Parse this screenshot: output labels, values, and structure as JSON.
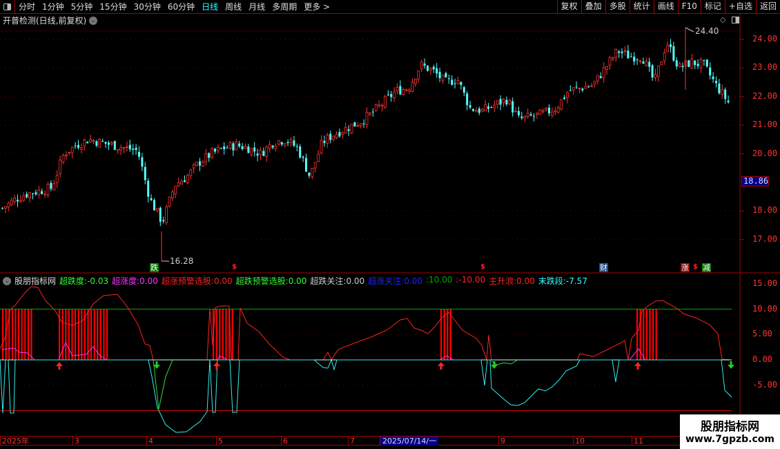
{
  "toolbar": {
    "periods": [
      "分时",
      "1分钟",
      "5分钟",
      "15分钟",
      "30分钟",
      "60分钟",
      "日线",
      "周线",
      "月线",
      "多周期",
      "更多 >"
    ],
    "active_period": "日线",
    "right_buttons": [
      "复权",
      "叠加",
      "多股",
      "统计",
      "画线",
      "F10",
      "标记",
      "+自选",
      "返回"
    ]
  },
  "main_chart": {
    "title": "开普检测(日线,前复权)",
    "price_axis": [
      "24.00",
      "23.00",
      "22.00",
      "21.00",
      "20.00",
      "18.00",
      "17.00"
    ],
    "current_price": "18.86",
    "high_label": "24.40",
    "low_label": "16.28",
    "signals": {
      "die": "跌",
      "cai": "财",
      "zhang": "涨",
      "jian": "减",
      "dollar": "$"
    },
    "close_waypoints": [
      18.1,
      18.4,
      18.6,
      18.7,
      18.8,
      20.0,
      20.3,
      20.5,
      20.4,
      20.3,
      20.2,
      20.1,
      18.4,
      17.6,
      18.9,
      19.2,
      19.7,
      20.0,
      20.2,
      20.3,
      20.2,
      20.0,
      20.4,
      20.5,
      20.2,
      19.2,
      20.4,
      20.7,
      20.9,
      21.1,
      21.4,
      21.8,
      22.2,
      22.3,
      23.1,
      22.9,
      22.5,
      22.6,
      21.6,
      21.5,
      21.7,
      21.9,
      21.2,
      21.3,
      21.4,
      21.6,
      22.2,
      22.3,
      22.4,
      23.0,
      23.6,
      23.4,
      23.4,
      22.5,
      23.9,
      23.0,
      23.2,
      23.1,
      22.4,
      21.8
    ],
    "colors": {
      "up": "#ff3232",
      "down": "#54ffff"
    }
  },
  "indicator": {
    "name": "股朋指标网",
    "readouts": [
      {
        "label": "超跌度:",
        "value": "-0.03",
        "color": "#3f3"
      },
      {
        "label": "超涨度:",
        "value": "0.00",
        "color": "#f3f"
      },
      {
        "label": "超涨预警选股:",
        "value": "0.00",
        "color": "#f22"
      },
      {
        "label": "超跌预警选股:",
        "value": "0.00",
        "color": "#3f3"
      },
      {
        "label": "超跌关注:",
        "value": "0.00",
        "color": "#ccc"
      },
      {
        "label": "超涨关注:",
        "value": "0.00",
        "color": "#22f"
      },
      {
        "label": ":",
        "value": "10.00",
        "color": "#0a0"
      },
      {
        "label": ":",
        "value": "-10.00",
        "color": "#f22"
      },
      {
        "label": "主升浪:",
        "value": "0.00",
        "color": "#f22"
      },
      {
        "label": "末跌段:",
        "value": "-7.57",
        "color": "#3ff"
      }
    ],
    "axis": [
      "15.00",
      "10.00",
      "5.00",
      "0.00",
      "-5.00"
    ]
  },
  "date_axis": [
    "2025年",
    "3",
    "4",
    "5",
    "6",
    "7",
    "2025/07/14/一",
    "9",
    "10",
    "11"
  ],
  "watermark": {
    "name": "股朋指标网",
    "url": "www.7gpzb.com"
  }
}
